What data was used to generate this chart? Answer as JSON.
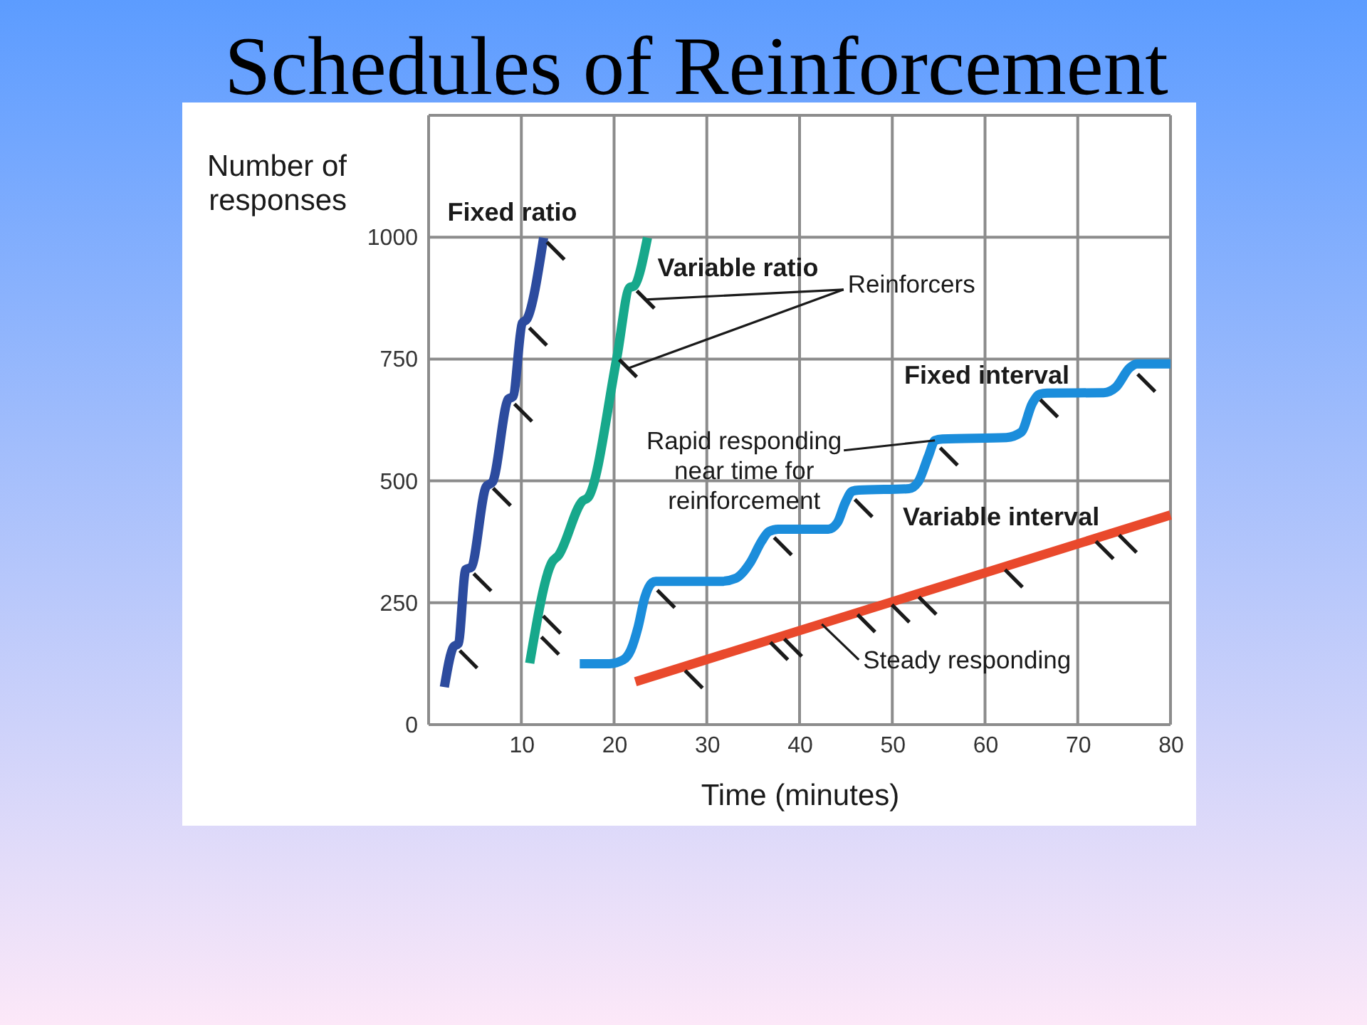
{
  "chart_data": {
    "type": "line",
    "title": "Schedules of Reinforcement",
    "xlabel": "Time (minutes)",
    "ylabel": "Number of responses",
    "xlim": [
      0,
      80
    ],
    "ylim": [
      0,
      1250
    ],
    "xticks": [
      10,
      20,
      30,
      40,
      50,
      60,
      70,
      80
    ],
    "yticks": [
      0,
      250,
      500,
      750,
      1000
    ],
    "grid": true,
    "legend": false,
    "line_style": "solid",
    "series": [
      {
        "name": "Fixed ratio",
        "color": "#2c4b9e",
        "x": [
          1.7,
          2.7,
          3.2,
          4.0,
          4.6,
          6.2,
          6.9,
          8.6,
          9.1,
          10.1,
          10.6,
          12.4
        ],
        "values": [
          77,
          160,
          166,
          318,
          323,
          488,
          498,
          668,
          673,
          824,
          832,
          999
        ]
      },
      {
        "name": "Variable ratio",
        "color": "#17a88b",
        "x": [
          10.9,
          13.3,
          14.0,
          16.6,
          17.2,
          20.3,
          21.7,
          22.1,
          23.6
        ],
        "values": [
          126,
          333,
          347,
          459,
          466,
          753,
          897,
          899,
          999
        ]
      },
      {
        "name": "Fixed interval",
        "color": "#1b8ddb",
        "x": [
          16.3,
          19.5,
          21.0,
          21.8,
          22.6,
          23.3,
          24.1,
          24.5,
          31.6,
          33.1,
          34.7,
          35.9,
          36.7,
          37.7,
          43.1,
          44.1,
          44.9,
          45.7,
          46.4,
          51.8,
          52.8,
          53.9,
          54.6,
          55.4,
          62.3,
          63.9,
          65.1,
          65.9,
          66.7,
          72.8,
          74.1,
          75.6,
          76.4,
          80.0
        ],
        "values": [
          125,
          125,
          133,
          153,
          201,
          260,
          291,
          294,
          294,
          300,
          333,
          376,
          396,
          401,
          401,
          415,
          454,
          479,
          481,
          484,
          498,
          551,
          583,
          586,
          589,
          600,
          659,
          678,
          680,
          681,
          692,
          732,
          740,
          740
        ]
      },
      {
        "name": "Variable interval",
        "color": "#e9492c",
        "x": [
          22.3,
          80
        ],
        "values": [
          88,
          430
        ]
      },
      {
        "name": "Reinforcers",
        "type": "scatter",
        "color": "#1a1a1a",
        "x": [
          4.3,
          5.8,
          7.9,
          10.2,
          11.8,
          13.7,
          13.1,
          13.3,
          21.5,
          23.4,
          25.6,
          38.2,
          46.9,
          56.1,
          66.9,
          77.4,
          28.6,
          37.8,
          39.3,
          47.2,
          50.9,
          53.8,
          63.1,
          72.9,
          75.4
        ],
        "values": [
          134,
          292,
          467,
          640,
          796,
          972,
          162,
          205,
          731,
          872,
          258,
          366,
          444,
          550,
          649,
          701,
          93,
          151,
          158,
          208,
          228,
          244,
          300,
          358,
          371
        ]
      }
    ],
    "annotations": [
      "Rapid responding near time for reinforcement",
      {
        "text": "Steady responding",
        "x": 42.4,
        "y": 206
      }
    ]
  }
}
